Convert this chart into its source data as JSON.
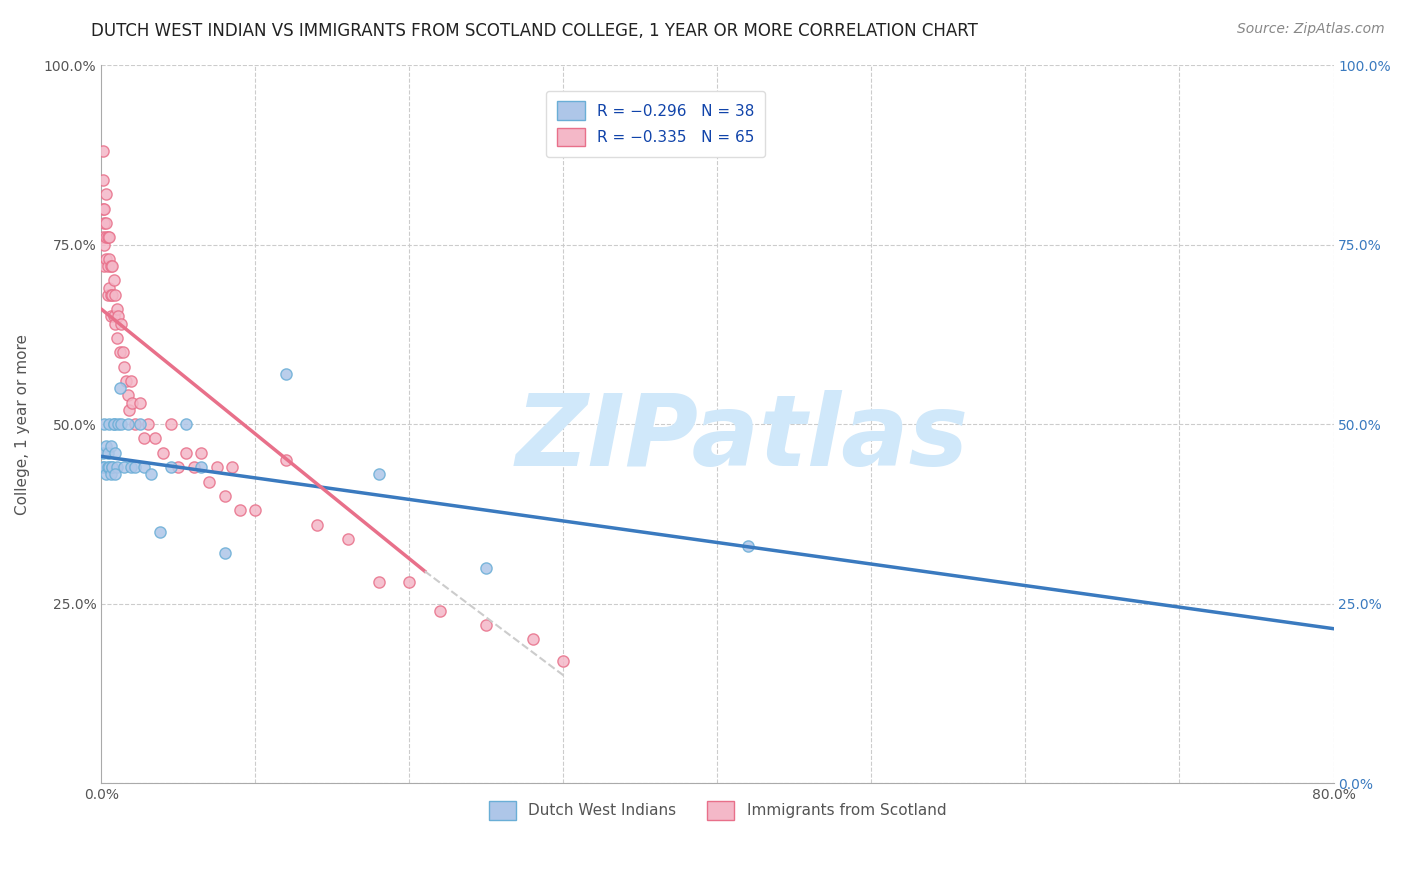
{
  "title": "DUTCH WEST INDIAN VS IMMIGRANTS FROM SCOTLAND COLLEGE, 1 YEAR OR MORE CORRELATION CHART",
  "source": "Source: ZipAtlas.com",
  "ylabel": "College, 1 year or more",
  "watermark": "ZIPatlas",
  "blue_scatter_x": [
    0.001,
    0.002,
    0.001,
    0.003,
    0.002,
    0.004,
    0.003,
    0.005,
    0.004,
    0.006,
    0.005,
    0.007,
    0.006,
    0.008,
    0.007,
    0.009,
    0.008,
    0.01,
    0.009,
    0.011,
    0.012,
    0.013,
    0.015,
    0.017,
    0.019,
    0.022,
    0.025,
    0.028,
    0.032,
    0.038,
    0.045,
    0.055,
    0.065,
    0.08,
    0.12,
    0.18,
    0.25,
    0.42
  ],
  "blue_scatter_y": [
    0.44,
    0.44,
    0.46,
    0.43,
    0.5,
    0.44,
    0.47,
    0.44,
    0.46,
    0.43,
    0.5,
    0.44,
    0.47,
    0.5,
    0.44,
    0.46,
    0.5,
    0.44,
    0.43,
    0.5,
    0.55,
    0.5,
    0.44,
    0.5,
    0.44,
    0.44,
    0.5,
    0.44,
    0.43,
    0.35,
    0.44,
    0.5,
    0.44,
    0.32,
    0.57,
    0.43,
    0.3,
    0.33
  ],
  "pink_scatter_x": [
    0.001,
    0.001,
    0.001,
    0.001,
    0.002,
    0.002,
    0.002,
    0.002,
    0.003,
    0.003,
    0.003,
    0.003,
    0.004,
    0.004,
    0.004,
    0.005,
    0.005,
    0.005,
    0.006,
    0.006,
    0.006,
    0.007,
    0.007,
    0.008,
    0.008,
    0.009,
    0.009,
    0.01,
    0.01,
    0.011,
    0.012,
    0.013,
    0.014,
    0.015,
    0.016,
    0.017,
    0.018,
    0.019,
    0.02,
    0.022,
    0.025,
    0.028,
    0.03,
    0.035,
    0.04,
    0.045,
    0.05,
    0.055,
    0.06,
    0.065,
    0.07,
    0.075,
    0.08,
    0.085,
    0.09,
    0.1,
    0.12,
    0.14,
    0.16,
    0.18,
    0.2,
    0.22,
    0.25,
    0.28,
    0.3
  ],
  "pink_scatter_y": [
    0.88,
    0.84,
    0.8,
    0.76,
    0.78,
    0.75,
    0.72,
    0.8,
    0.76,
    0.73,
    0.78,
    0.82,
    0.72,
    0.76,
    0.68,
    0.73,
    0.69,
    0.76,
    0.68,
    0.72,
    0.65,
    0.68,
    0.72,
    0.65,
    0.7,
    0.64,
    0.68,
    0.62,
    0.66,
    0.65,
    0.6,
    0.64,
    0.6,
    0.58,
    0.56,
    0.54,
    0.52,
    0.56,
    0.53,
    0.5,
    0.53,
    0.48,
    0.5,
    0.48,
    0.46,
    0.5,
    0.44,
    0.46,
    0.44,
    0.46,
    0.42,
    0.44,
    0.4,
    0.44,
    0.38,
    0.38,
    0.45,
    0.36,
    0.34,
    0.28,
    0.28,
    0.24,
    0.22,
    0.2,
    0.17
  ],
  "blue_line_x": [
    0.0,
    0.8
  ],
  "blue_line_y": [
    0.455,
    0.215
  ],
  "pink_line_x": [
    0.0,
    0.21
  ],
  "pink_line_y": [
    0.66,
    0.295
  ],
  "pink_dashed_line_x": [
    0.21,
    0.3
  ],
  "pink_dashed_line_y": [
    0.295,
    0.15
  ],
  "xlim": [
    0.0,
    0.8
  ],
  "ylim": [
    0.0,
    1.0
  ],
  "x_ticks": [
    0.0,
    0.1,
    0.2,
    0.3,
    0.4,
    0.5,
    0.6,
    0.7,
    0.8
  ],
  "y_ticks": [
    0.0,
    0.25,
    0.5,
    0.75,
    1.0
  ],
  "scatter_size": 65,
  "blue_face_color": "#aec6e8",
  "blue_edge_color": "#6aaed6",
  "pink_face_color": "#f4b8c8",
  "pink_edge_color": "#e8708a",
  "blue_line_color": "#3a7abf",
  "pink_line_color": "#e8708a",
  "watermark_color": "#d0e8fa",
  "watermark_fontsize": 72,
  "title_fontsize": 12,
  "axis_label_fontsize": 11,
  "tick_fontsize": 10,
  "source_fontsize": 10,
  "right_axis_color": "#3a7abf",
  "legend_r_color": "#1144aa",
  "legend_n_color": "#e8708a"
}
